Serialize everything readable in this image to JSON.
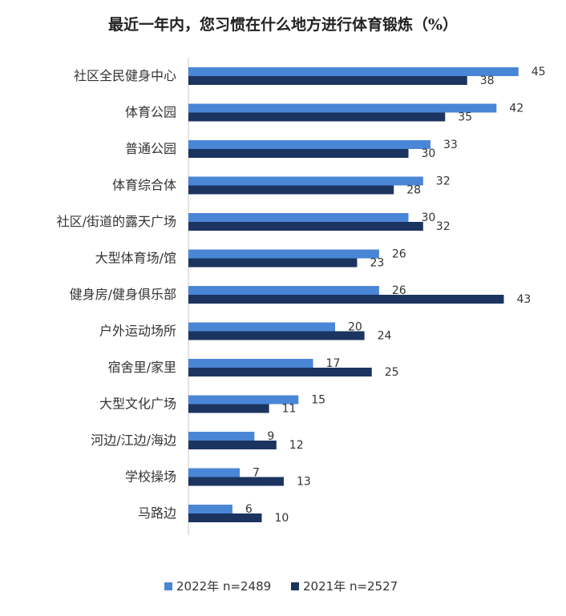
{
  "chart_data": {
    "type": "bar",
    "orientation": "horizontal",
    "title": "最近一年内，您习惯在什么地方进行体育锻炼（%）",
    "categories": [
      "社区全民健身中心",
      "体育公园",
      "普通公园",
      "体育综合体",
      "社区/街道的露天广场",
      "大型体育场/馆",
      "健身房/健身俱乐部",
      "户外运动场所",
      "宿舍里/家里",
      "大型文化广场",
      "河边/江边/海边",
      "学校操场",
      "马路边"
    ],
    "series": [
      {
        "name": "2022年 n=2489",
        "color": "#4a86d6",
        "values": [
          45,
          42,
          33,
          32,
          30,
          26,
          26,
          20,
          17,
          15,
          9,
          7,
          6
        ]
      },
      {
        "name": "2021年 n=2527",
        "color": "#1c3560",
        "values": [
          38,
          35,
          30,
          28,
          32,
          23,
          43,
          24,
          25,
          11,
          12,
          13,
          10
        ]
      }
    ],
    "xlim": [
      0,
      45
    ],
    "grid": false,
    "legend_position": "bottom"
  }
}
